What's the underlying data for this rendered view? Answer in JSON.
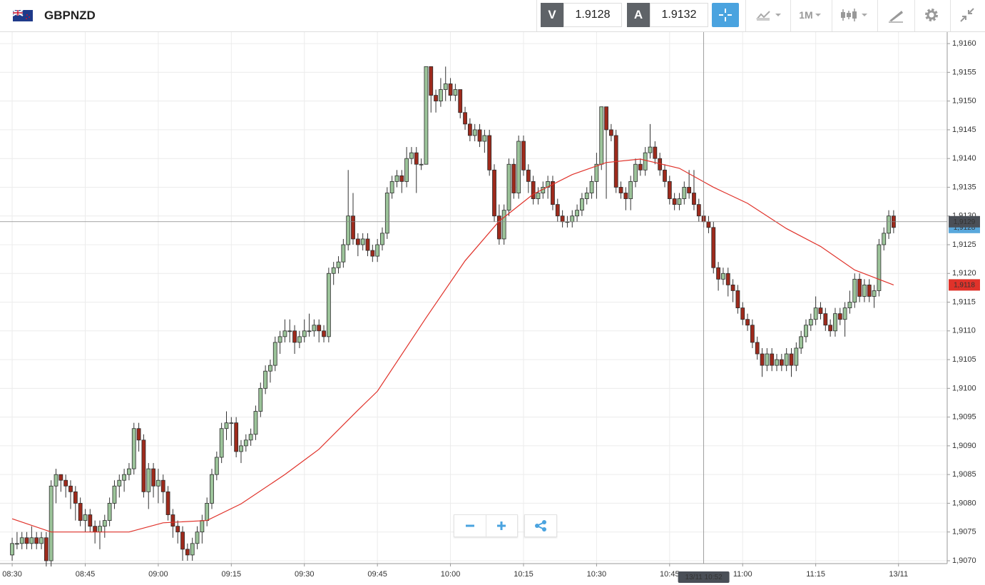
{
  "header": {
    "symbol": "GBPNZD",
    "bid_label": "V",
    "bid": 1.9128,
    "ask_label": "A",
    "ask": 1.9132,
    "interval": "1M"
  },
  "chart_data": {
    "type": "candlestick",
    "up_color": "#9cc49a",
    "down_color": "#9e2a1c",
    "xlim": [
      -2.5,
      192
    ],
    "xticks": [
      {
        "value": 0,
        "label": "08:30"
      },
      {
        "value": 15,
        "label": "08:45"
      },
      {
        "value": 30,
        "label": "09:00"
      },
      {
        "value": 45,
        "label": "09:15"
      },
      {
        "value": 60,
        "label": "09:30"
      },
      {
        "value": 75,
        "label": "09:45"
      },
      {
        "value": 90,
        "label": "10:00"
      },
      {
        "value": 105,
        "label": "10:15"
      },
      {
        "value": 120,
        "label": "10:30"
      },
      {
        "value": 135,
        "label": "10:45"
      },
      {
        "value": 150,
        "label": "11:00"
      },
      {
        "value": 165,
        "label": "11:15"
      },
      {
        "value": 182,
        "label": "13/11"
      }
    ],
    "ylim": [
      1.90695,
      1.9162
    ],
    "yticks": [
      {
        "value": 1.907,
        "label": "1,9070"
      },
      {
        "value": 1.9075,
        "label": "1,9075"
      },
      {
        "value": 1.908,
        "label": "1,9080"
      },
      {
        "value": 1.9085,
        "label": "1,9085"
      },
      {
        "value": 1.909,
        "label": "1,9090"
      },
      {
        "value": 1.9095,
        "label": "1,9095"
      },
      {
        "value": 1.91,
        "label": "1,9100"
      },
      {
        "value": 1.9105,
        "label": "1,9105"
      },
      {
        "value": 1.911,
        "label": "1,9110"
      },
      {
        "value": 1.9115,
        "label": "1,9115"
      },
      {
        "value": 1.912,
        "label": "1,9120"
      },
      {
        "value": 1.9125,
        "label": "1,9125"
      },
      {
        "value": 1.913,
        "label": "1,9130"
      },
      {
        "value": 1.9135,
        "label": "1,9135"
      },
      {
        "value": 1.914,
        "label": "1,9140"
      },
      {
        "value": 1.9145,
        "label": "1,9145"
      },
      {
        "value": 1.915,
        "label": "1,9150"
      },
      {
        "value": 1.9155,
        "label": "1,9155"
      },
      {
        "value": 1.916,
        "label": "1,9160"
      }
    ],
    "grid": true,
    "x": [
      0,
      1,
      2,
      3,
      4,
      5,
      6,
      7,
      8,
      9,
      10,
      11,
      12,
      13,
      14,
      15,
      16,
      17,
      18,
      19,
      20,
      21,
      22,
      23,
      24,
      25,
      26,
      27,
      28,
      29,
      30,
      31,
      32,
      33,
      34,
      35,
      36,
      37,
      38,
      39,
      40,
      41,
      42,
      43,
      44,
      45,
      46,
      47,
      48,
      49,
      50,
      51,
      52,
      53,
      54,
      55,
      56,
      57,
      58,
      59,
      60,
      61,
      62,
      63,
      64,
      65,
      66,
      67,
      68,
      69,
      70,
      71,
      72,
      73,
      74,
      75,
      76,
      77,
      78,
      79,
      80,
      81,
      82,
      83,
      84,
      85,
      86,
      87,
      88,
      89,
      90,
      91,
      92,
      93,
      94,
      95,
      96,
      97,
      98,
      99,
      100,
      101,
      102,
      103,
      104,
      105,
      106,
      107,
      108,
      109,
      110,
      111,
      112,
      113,
      114,
      115,
      116,
      117,
      118,
      119,
      120,
      121,
      122,
      123,
      124,
      125,
      126,
      127,
      128,
      129,
      130,
      131,
      132,
      133,
      134,
      135,
      136,
      137,
      138,
      139,
      140,
      141,
      142,
      143,
      144,
      145,
      146,
      147,
      148,
      149,
      150,
      151,
      152,
      153,
      154,
      155,
      156,
      157,
      158,
      159,
      160,
      161,
      162,
      163,
      164,
      165,
      166,
      167,
      168,
      169,
      170,
      171,
      172,
      173,
      174,
      175,
      176,
      177,
      178,
      179,
      180,
      181
    ],
    "ohlc": [
      [
        1.9071,
        1.9074,
        1.907,
        1.9073
      ],
      [
        1.9073,
        1.9075,
        1.9072,
        1.9073
      ],
      [
        1.9073,
        1.9075,
        1.9072,
        1.9074
      ],
      [
        1.9074,
        1.9075,
        1.9072,
        1.9073
      ],
      [
        1.9073,
        1.9076,
        1.9072,
        1.9074
      ],
      [
        1.9074,
        1.9075,
        1.9072,
        1.9073
      ],
      [
        1.9073,
        1.9075,
        1.9072,
        1.9074
      ],
      [
        1.9074,
        1.9075,
        1.9069,
        1.907
      ],
      [
        1.907,
        1.9084,
        1.9069,
        1.9083
      ],
      [
        1.9083,
        1.9086,
        1.908,
        1.9085
      ],
      [
        1.9085,
        1.9085,
        1.9082,
        1.9084
      ],
      [
        1.9084,
        1.9085,
        1.9081,
        1.9083
      ],
      [
        1.9083,
        1.9084,
        1.9079,
        1.9082
      ],
      [
        1.9082,
        1.9083,
        1.9077,
        1.908
      ],
      [
        1.908,
        1.9081,
        1.9076,
        1.9077
      ],
      [
        1.9077,
        1.9079,
        1.9075,
        1.9078
      ],
      [
        1.9078,
        1.9079,
        1.9075,
        1.9076
      ],
      [
        1.9076,
        1.9077,
        1.9073,
        1.9075
      ],
      [
        1.9075,
        1.9077,
        1.9072,
        1.9076
      ],
      [
        1.9076,
        1.9078,
        1.9074,
        1.9077
      ],
      [
        1.9077,
        1.9081,
        1.9076,
        1.908
      ],
      [
        1.908,
        1.9084,
        1.9079,
        1.9083
      ],
      [
        1.9083,
        1.9085,
        1.9081,
        1.9084
      ],
      [
        1.9084,
        1.9086,
        1.9082,
        1.9085
      ],
      [
        1.9085,
        1.9087,
        1.9084,
        1.9086
      ],
      [
        1.9086,
        1.9094,
        1.9085,
        1.9093
      ],
      [
        1.9093,
        1.9094,
        1.9089,
        1.9091
      ],
      [
        1.9091,
        1.9092,
        1.9081,
        1.9082
      ],
      [
        1.9082,
        1.9087,
        1.9079,
        1.9086
      ],
      [
        1.9086,
        1.9087,
        1.9081,
        1.9083
      ],
      [
        1.9083,
        1.9086,
        1.908,
        1.9084
      ],
      [
        1.9084,
        1.9085,
        1.908,
        1.9082
      ],
      [
        1.9082,
        1.9083,
        1.9077,
        1.9078
      ],
      [
        1.9078,
        1.9079,
        1.9074,
        1.9076
      ],
      [
        1.9076,
        1.9077,
        1.9073,
        1.9075
      ],
      [
        1.9075,
        1.9076,
        1.907,
        1.9072
      ],
      [
        1.9072,
        1.9073,
        1.907,
        1.9071
      ],
      [
        1.9071,
        1.9074,
        1.907,
        1.9073
      ],
      [
        1.9073,
        1.9076,
        1.9072,
        1.9075
      ],
      [
        1.9075,
        1.9078,
        1.9073,
        1.9077
      ],
      [
        1.9077,
        1.9081,
        1.9076,
        1.908
      ],
      [
        1.908,
        1.9086,
        1.9079,
        1.9085
      ],
      [
        1.9085,
        1.9089,
        1.9084,
        1.9088
      ],
      [
        1.9088,
        1.9094,
        1.9087,
        1.9093
      ],
      [
        1.9093,
        1.9096,
        1.9091,
        1.9094
      ],
      [
        1.9094,
        1.9095,
        1.909,
        1.9094
      ],
      [
        1.9094,
        1.9095,
        1.9088,
        1.9089
      ],
      [
        1.9089,
        1.9091,
        1.9087,
        1.909
      ],
      [
        1.909,
        1.9092,
        1.9089,
        1.9091
      ],
      [
        1.9091,
        1.9093,
        1.909,
        1.9092
      ],
      [
        1.9092,
        1.9097,
        1.9091,
        1.9096
      ],
      [
        1.9096,
        1.9101,
        1.9095,
        1.91
      ],
      [
        1.91,
        1.9104,
        1.9099,
        1.9103
      ],
      [
        1.9103,
        1.9105,
        1.9101,
        1.9104
      ],
      [
        1.9104,
        1.9109,
        1.9103,
        1.9108
      ],
      [
        1.9108,
        1.911,
        1.9106,
        1.9109
      ],
      [
        1.9109,
        1.9112,
        1.9108,
        1.911
      ],
      [
        1.911,
        1.9112,
        1.9108,
        1.911
      ],
      [
        1.911,
        1.9111,
        1.9106,
        1.9108
      ],
      [
        1.9108,
        1.911,
        1.9107,
        1.9109
      ],
      [
        1.9109,
        1.9112,
        1.9108,
        1.911
      ],
      [
        1.911,
        1.9113,
        1.9109,
        1.911
      ],
      [
        1.911,
        1.9112,
        1.9109,
        1.9111
      ],
      [
        1.9111,
        1.9112,
        1.9108,
        1.911
      ],
      [
        1.911,
        1.9111,
        1.9108,
        1.9109
      ],
      [
        1.9109,
        1.9121,
        1.9108,
        1.912
      ],
      [
        1.912,
        1.9122,
        1.9118,
        1.9121
      ],
      [
        1.9121,
        1.9123,
        1.912,
        1.9122
      ],
      [
        1.9122,
        1.9126,
        1.9121,
        1.9125
      ],
      [
        1.9125,
        1.9138,
        1.9124,
        1.913
      ],
      [
        1.913,
        1.9134,
        1.9125,
        1.9126
      ],
      [
        1.9126,
        1.9127,
        1.9123,
        1.9125
      ],
      [
        1.9125,
        1.9127,
        1.9124,
        1.9126
      ],
      [
        1.9126,
        1.9127,
        1.9123,
        1.9124
      ],
      [
        1.9124,
        1.9125,
        1.9122,
        1.9123
      ],
      [
        1.9123,
        1.9126,
        1.9122,
        1.9125
      ],
      [
        1.9125,
        1.9128,
        1.9124,
        1.9127
      ],
      [
        1.9127,
        1.9135,
        1.9126,
        1.9134
      ],
      [
        1.9134,
        1.9137,
        1.9133,
        1.9136
      ],
      [
        1.9136,
        1.9138,
        1.9135,
        1.9137
      ],
      [
        1.9137,
        1.9138,
        1.9134,
        1.9136
      ],
      [
        1.9136,
        1.9142,
        1.9135,
        1.914
      ],
      [
        1.914,
        1.9142,
        1.9139,
        1.9141
      ],
      [
        1.9141,
        1.9142,
        1.9134,
        1.9139
      ],
      [
        1.9139,
        1.914,
        1.9138,
        1.9139
      ],
      [
        1.9139,
        1.9156,
        1.9139,
        1.9156
      ],
      [
        1.9156,
        1.9156,
        1.9148,
        1.9151
      ],
      [
        1.9151,
        1.9152,
        1.9148,
        1.915
      ],
      [
        1.915,
        1.9154,
        1.9149,
        1.9152
      ],
      [
        1.9152,
        1.9156,
        1.915,
        1.9153
      ],
      [
        1.9153,
        1.9154,
        1.915,
        1.9151
      ],
      [
        1.9151,
        1.9153,
        1.915,
        1.9152
      ],
      [
        1.9152,
        1.9152,
        1.9147,
        1.9148
      ],
      [
        1.9148,
        1.9149,
        1.9145,
        1.9146
      ],
      [
        1.9146,
        1.9147,
        1.9143,
        1.9144
      ],
      [
        1.9144,
        1.9146,
        1.9143,
        1.9145
      ],
      [
        1.9145,
        1.9146,
        1.9142,
        1.9143
      ],
      [
        1.9143,
        1.9145,
        1.9141,
        1.9144
      ],
      [
        1.9144,
        1.9145,
        1.9137,
        1.9138
      ],
      [
        1.9138,
        1.9139,
        1.9129,
        1.913
      ],
      [
        1.913,
        1.9132,
        1.9125,
        1.9126
      ],
      [
        1.9126,
        1.9132,
        1.9125,
        1.9131
      ],
      [
        1.9131,
        1.914,
        1.913,
        1.9139
      ],
      [
        1.9139,
        1.914,
        1.9133,
        1.9134
      ],
      [
        1.9134,
        1.9144,
        1.9133,
        1.9143
      ],
      [
        1.9143,
        1.9144,
        1.9137,
        1.9138
      ],
      [
        1.9138,
        1.9139,
        1.9134,
        1.9136
      ],
      [
        1.9136,
        1.9137,
        1.9132,
        1.9133
      ],
      [
        1.9133,
        1.9135,
        1.9132,
        1.9134
      ],
      [
        1.9134,
        1.9136,
        1.9133,
        1.9135
      ],
      [
        1.9135,
        1.9137,
        1.9133,
        1.9136
      ],
      [
        1.9136,
        1.9137,
        1.9131,
        1.9132
      ],
      [
        1.9132,
        1.9133,
        1.9129,
        1.913
      ],
      [
        1.913,
        1.9131,
        1.9128,
        1.9129
      ],
      [
        1.9129,
        1.913,
        1.9128,
        1.9129
      ],
      [
        1.9129,
        1.9131,
        1.9128,
        1.913
      ],
      [
        1.913,
        1.9132,
        1.9129,
        1.9131
      ],
      [
        1.9131,
        1.9134,
        1.913,
        1.9133
      ],
      [
        1.9133,
        1.9135,
        1.9132,
        1.9134
      ],
      [
        1.9134,
        1.9137,
        1.9133,
        1.9136
      ],
      [
        1.9136,
        1.9141,
        1.9133,
        1.9139
      ],
      [
        1.9139,
        1.9149,
        1.9138,
        1.9149
      ],
      [
        1.9149,
        1.9149,
        1.9133,
        1.9145
      ],
      [
        1.9145,
        1.9146,
        1.9143,
        1.9144
      ],
      [
        1.9144,
        1.9145,
        1.9134,
        1.9135
      ],
      [
        1.9135,
        1.9136,
        1.9133,
        1.9134
      ],
      [
        1.9134,
        1.9135,
        1.9131,
        1.9133
      ],
      [
        1.9133,
        1.9137,
        1.9131,
        1.9136
      ],
      [
        1.9136,
        1.914,
        1.9135,
        1.9139
      ],
      [
        1.9139,
        1.914,
        1.9137,
        1.9138
      ],
      [
        1.9138,
        1.9142,
        1.9137,
        1.9141
      ],
      [
        1.9141,
        1.9146,
        1.914,
        1.9142
      ],
      [
        1.9142,
        1.9143,
        1.9139,
        1.914
      ],
      [
        1.914,
        1.9141,
        1.9137,
        1.9138
      ],
      [
        1.9138,
        1.9139,
        1.9135,
        1.9136
      ],
      [
        1.9136,
        1.9137,
        1.9132,
        1.9133
      ],
      [
        1.9133,
        1.9134,
        1.9131,
        1.9132
      ],
      [
        1.9132,
        1.9134,
        1.9131,
        1.9133
      ],
      [
        1.9133,
        1.9136,
        1.9132,
        1.9135
      ],
      [
        1.9135,
        1.9138,
        1.9133,
        1.9134
      ],
      [
        1.9134,
        1.9138,
        1.9131,
        1.9132
      ],
      [
        1.9132,
        1.9133,
        1.9129,
        1.913
      ],
      [
        1.913,
        1.9131,
        1.9128,
        1.9129
      ],
      [
        1.9129,
        1.913,
        1.9127,
        1.9128
      ],
      [
        1.9128,
        1.9129,
        1.912,
        1.9121
      ],
      [
        1.9121,
        1.9122,
        1.9117,
        1.9119
      ],
      [
        1.9119,
        1.9121,
        1.9118,
        1.912
      ],
      [
        1.912,
        1.9121,
        1.9116,
        1.9118
      ],
      [
        1.9118,
        1.9119,
        1.9115,
        1.9117
      ],
      [
        1.9117,
        1.9118,
        1.9113,
        1.9114
      ],
      [
        1.9114,
        1.9115,
        1.9111,
        1.9112
      ],
      [
        1.9112,
        1.9113,
        1.911,
        1.9111
      ],
      [
        1.9111,
        1.9112,
        1.9107,
        1.9108
      ],
      [
        1.9108,
        1.9109,
        1.9105,
        1.9106
      ],
      [
        1.9106,
        1.9107,
        1.9102,
        1.9104
      ],
      [
        1.9104,
        1.9107,
        1.9103,
        1.9106
      ],
      [
        1.9106,
        1.9107,
        1.9103,
        1.9104
      ],
      [
        1.9104,
        1.9106,
        1.9103,
        1.9105
      ],
      [
        1.9105,
        1.9106,
        1.9103,
        1.9104
      ],
      [
        1.9104,
        1.9107,
        1.9103,
        1.9106
      ],
      [
        1.9106,
        1.9107,
        1.9102,
        1.9104
      ],
      [
        1.9104,
        1.9108,
        1.9103,
        1.9107
      ],
      [
        1.9107,
        1.911,
        1.9106,
        1.9109
      ],
      [
        1.9109,
        1.9112,
        1.9108,
        1.9111
      ],
      [
        1.9111,
        1.9113,
        1.911,
        1.9112
      ],
      [
        1.9112,
        1.9116,
        1.9111,
        1.9114
      ],
      [
        1.9114,
        1.9115,
        1.9112,
        1.9113
      ],
      [
        1.9113,
        1.9114,
        1.911,
        1.9111
      ],
      [
        1.9111,
        1.9112,
        1.9109,
        1.911
      ],
      [
        1.911,
        1.9114,
        1.9109,
        1.9113
      ],
      [
        1.9113,
        1.9114,
        1.9111,
        1.9112
      ],
      [
        1.9112,
        1.9115,
        1.9109,
        1.9114
      ],
      [
        1.9114,
        1.9117,
        1.9113,
        1.9115
      ],
      [
        1.9115,
        1.912,
        1.9114,
        1.9119
      ],
      [
        1.9119,
        1.912,
        1.9115,
        1.9116
      ],
      [
        1.9116,
        1.9119,
        1.9115,
        1.9118
      ],
      [
        1.9118,
        1.9119,
        1.9115,
        1.9116
      ],
      [
        1.9116,
        1.9118,
        1.9114,
        1.9117
      ],
      [
        1.9117,
        1.9126,
        1.9116,
        1.9125
      ],
      [
        1.9125,
        1.9128,
        1.9124,
        1.9127
      ],
      [
        1.9127,
        1.9131,
        1.9126,
        1.913
      ],
      [
        1.913,
        1.9131,
        1.9127,
        1.9128
      ]
    ],
    "ma": {
      "color": "#e0322a",
      "x": [
        0,
        8,
        15,
        24,
        31,
        40,
        47,
        56,
        63,
        71,
        75,
        85,
        93,
        100,
        107,
        115,
        122,
        129,
        137,
        144,
        151,
        159,
        166,
        173,
        181
      ],
      "values": [
        1.90773,
        1.9075,
        1.9075,
        1.9075,
        1.90766,
        1.9077,
        1.90799,
        1.9085,
        1.90894,
        1.90962,
        1.90995,
        1.91123,
        1.91222,
        1.91291,
        1.91338,
        1.91372,
        1.91393,
        1.91399,
        1.91383,
        1.9135,
        1.91322,
        1.91278,
        1.91247,
        1.91206,
        1.9118
      ],
      "last_label": "1,9118"
    },
    "last_price": {
      "value": 1.9128,
      "label": "1,9128",
      "color": "#59a8dc"
    },
    "crosshair": {
      "x": 142,
      "x_label": "13/11 10:52",
      "y": 1.9129,
      "y_label": "1,9129"
    }
  }
}
